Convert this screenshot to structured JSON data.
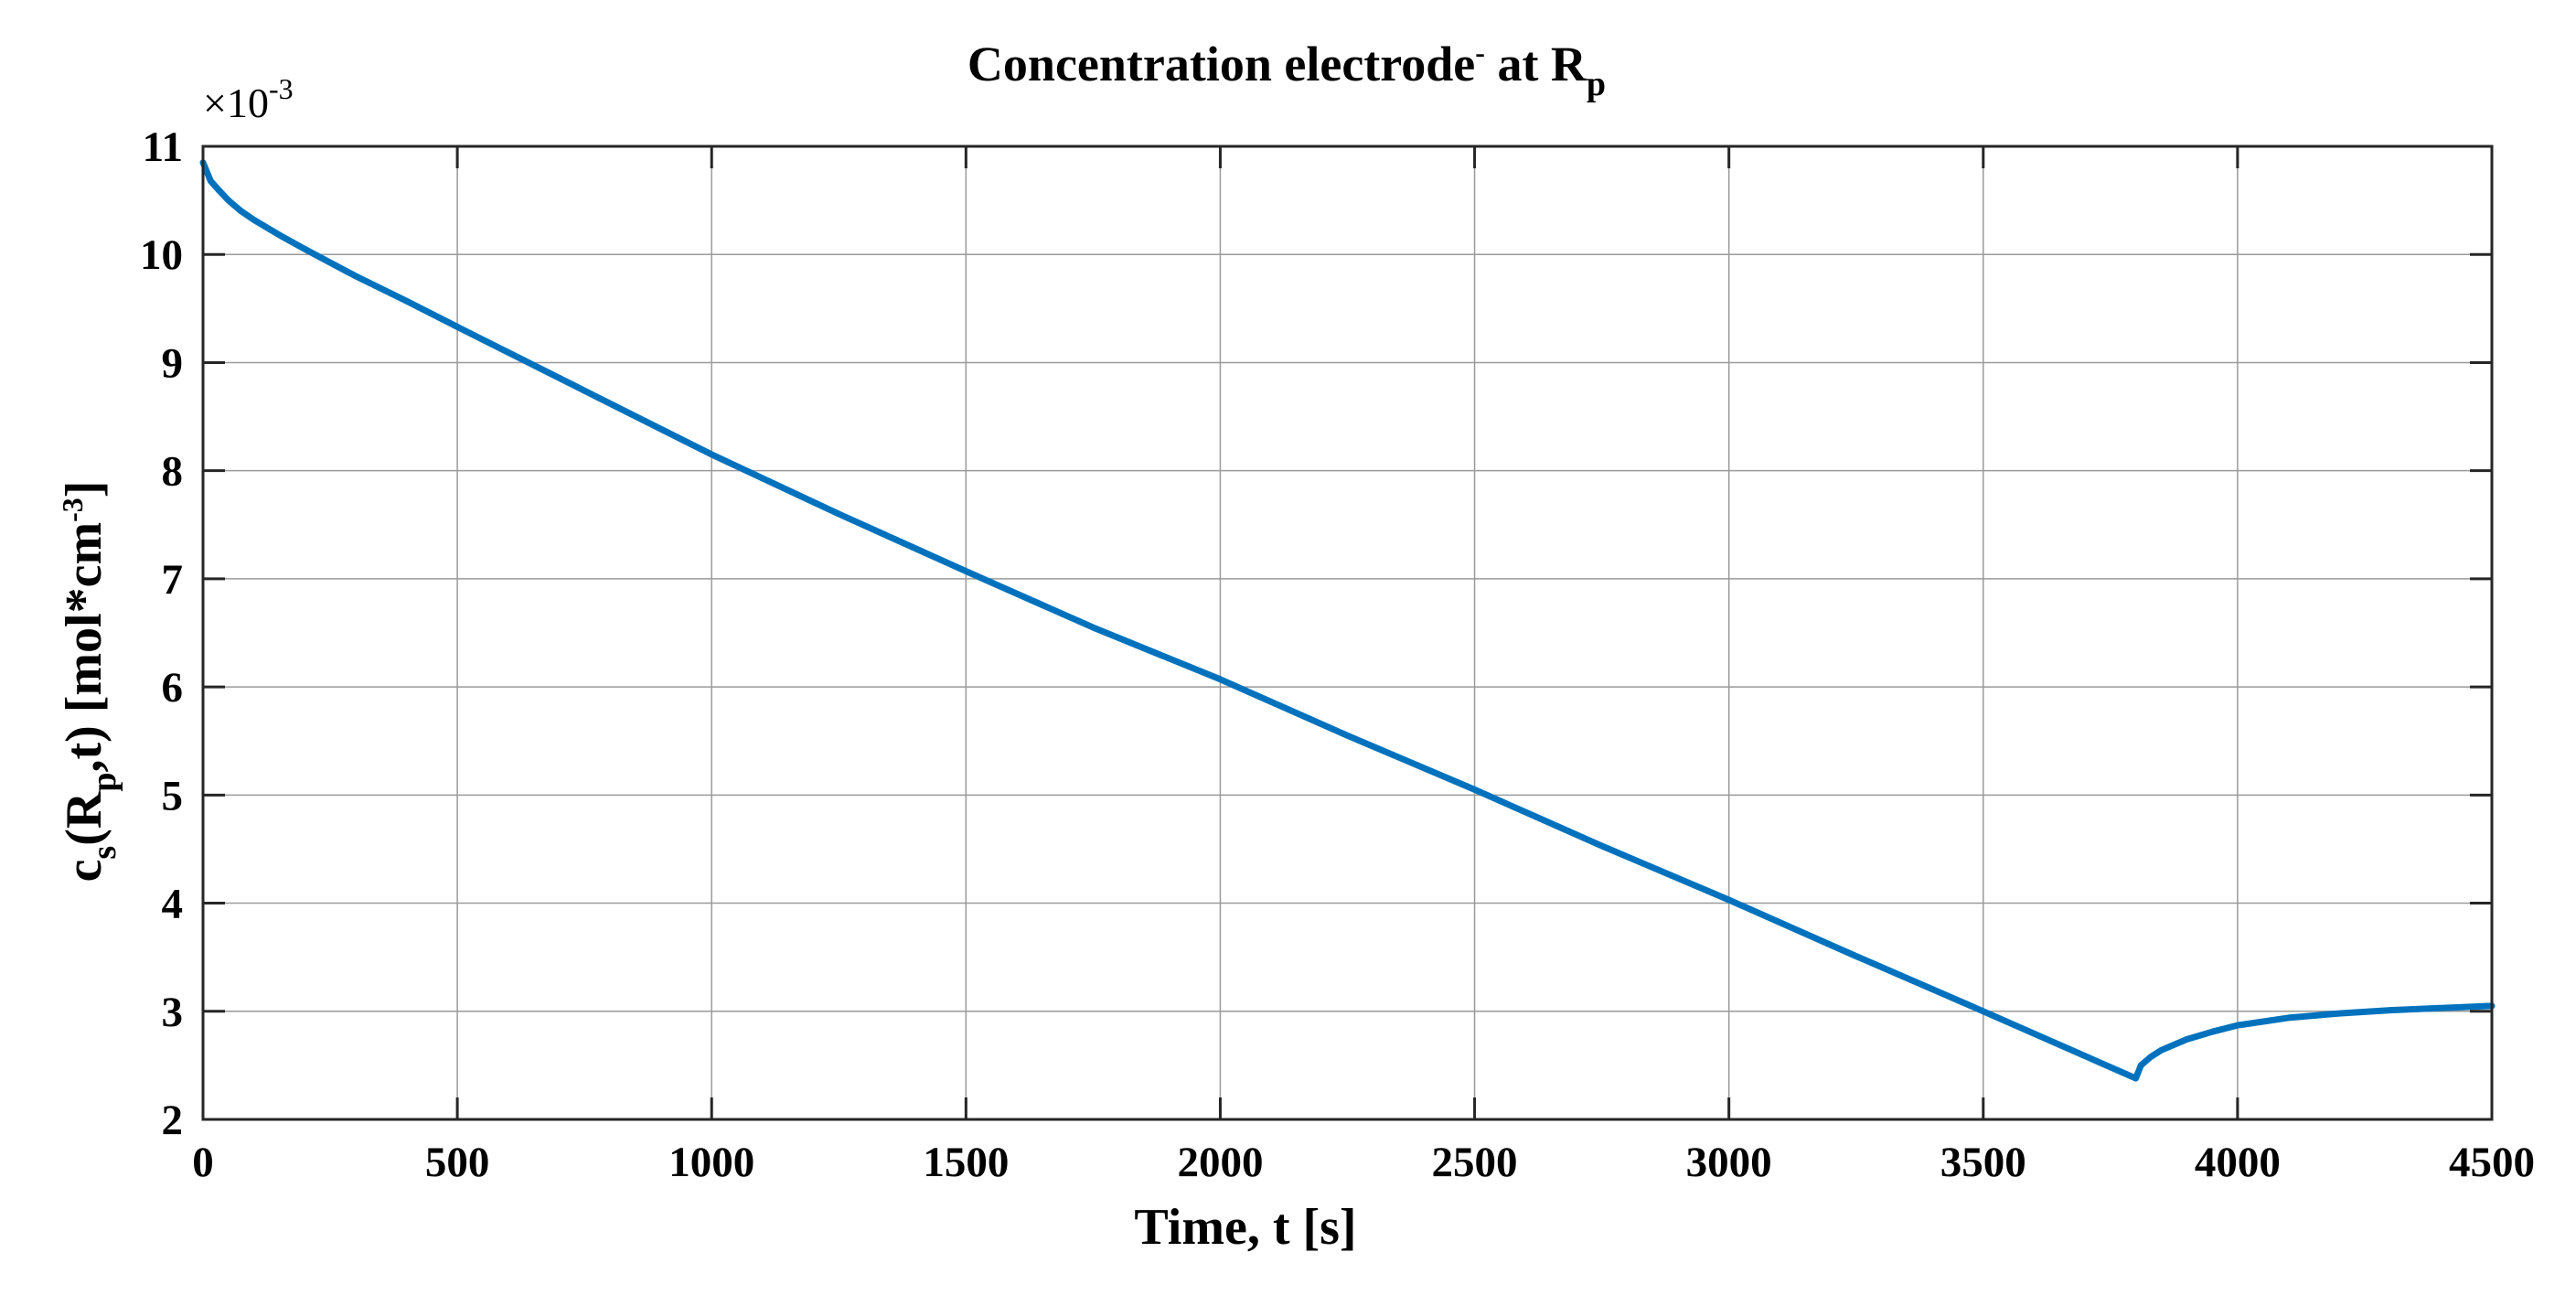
{
  "chart_data": {
    "type": "line",
    "title": {
      "text": "Concentration electrode",
      "superscript": "-",
      "middle": " at R",
      "subscript": "p"
    },
    "xlabel": "Time, t [s]",
    "ylabel": {
      "part1": "c",
      "sub1": "s",
      "part2": "(R",
      "sub2": "p",
      "part3": ",t) [mol*cm",
      "sup3": "-3",
      "part4": "]"
    },
    "y_multiplier": {
      "base": "×10",
      "exponent": "-3"
    },
    "xlim": [
      0,
      4500
    ],
    "ylim": [
      2,
      11
    ],
    "x_ticks": [
      0,
      500,
      1000,
      1500,
      2000,
      2500,
      3000,
      3500,
      4000,
      4500
    ],
    "x_tick_labels": [
      "0",
      "500",
      "1000",
      "1500",
      "2000",
      "2500",
      "3000",
      "3500",
      "4000",
      "4500"
    ],
    "y_ticks": [
      2,
      3,
      4,
      5,
      6,
      7,
      8,
      9,
      10,
      11
    ],
    "y_tick_labels": [
      "2",
      "3",
      "4",
      "5",
      "6",
      "7",
      "8",
      "9",
      "10",
      "11"
    ],
    "grid": true,
    "series": [
      {
        "name": "c_s(R_p,t)",
        "color": "#0072BD",
        "x": [
          0,
          15,
          30,
          50,
          75,
          100,
          150,
          200,
          300,
          400,
          500,
          750,
          1000,
          1250,
          1500,
          1750,
          2000,
          2250,
          2500,
          2750,
          3000,
          3250,
          3500,
          3650,
          3800,
          3810,
          3830,
          3850,
          3900,
          3950,
          4000,
          4100,
          4200,
          4300,
          4400,
          4500
        ],
        "y": [
          10.85,
          10.68,
          10.6,
          10.5,
          10.4,
          10.32,
          10.18,
          10.05,
          9.8,
          9.57,
          9.33,
          8.74,
          8.15,
          7.6,
          7.07,
          6.55,
          6.07,
          5.55,
          5.05,
          4.53,
          4.03,
          3.51,
          3.0,
          2.69,
          2.38,
          2.5,
          2.58,
          2.64,
          2.74,
          2.81,
          2.87,
          2.94,
          2.98,
          3.01,
          3.03,
          3.05
        ]
      }
    ]
  }
}
